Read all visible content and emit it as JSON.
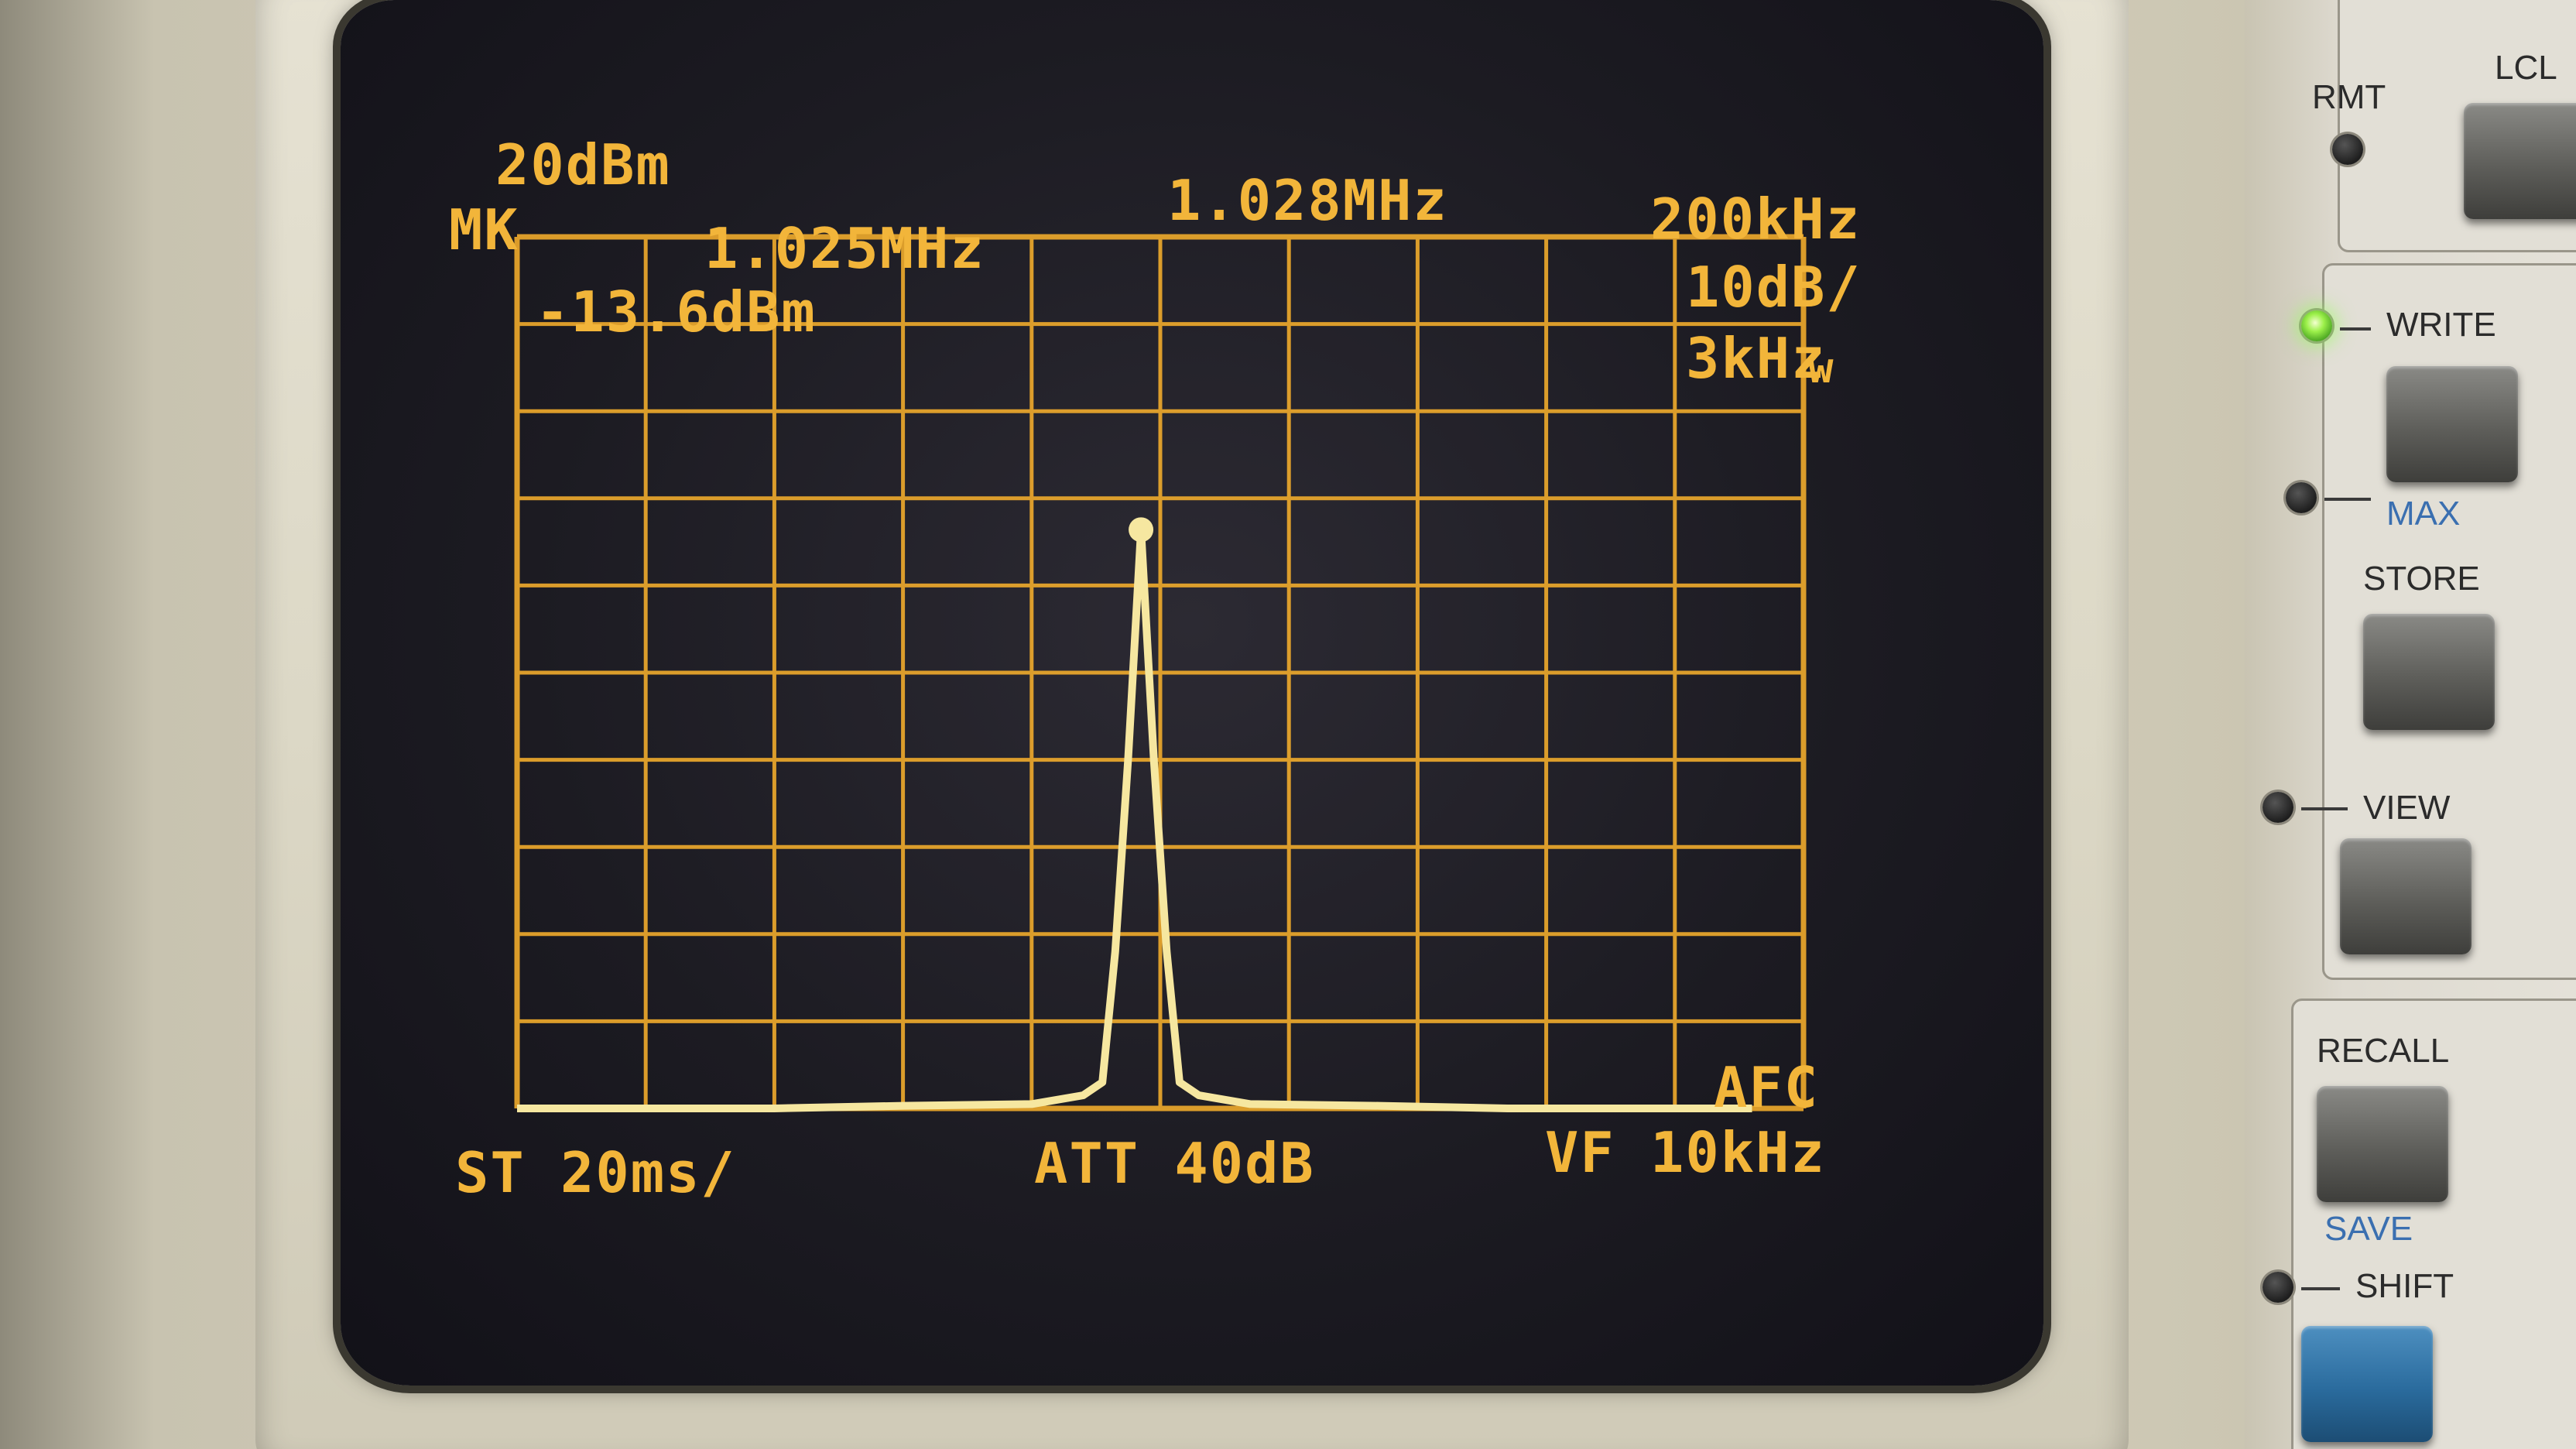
{
  "screen": {
    "ref_level": "20dBm",
    "center_freq": "1.028MHz",
    "span": "200kHz",
    "marker_label": "MK",
    "marker_freq": "1.025MHz",
    "marker_level": "-13.6dBm",
    "scale": "10dB/",
    "rbw": "3kHz",
    "rbw_suffix": "w",
    "afc": "AFC",
    "sweep_time": "ST 20ms/",
    "attenuation": "ATT 40dB",
    "video_filter": "VF 10kHz",
    "trace_color": "#f6e7a0",
    "text_color": "#f2b53a",
    "grid_color": "#f0ab2c"
  },
  "chart_data": {
    "type": "line",
    "title": "",
    "xlabel": "",
    "ylabel": "",
    "x_units": "MHz",
    "y_units": "dBm",
    "xlim": [
      0.928,
      1.128
    ],
    "ylim": [
      -80,
      20
    ],
    "grid": "on",
    "x": [
      0.928,
      0.948,
      0.968,
      0.988,
      1.008,
      1.016,
      1.019,
      1.021,
      1.023,
      1.025,
      1.027,
      1.029,
      1.031,
      1.034,
      1.042,
      1.062,
      1.082,
      1.102,
      1.12
    ],
    "values": [
      -80,
      -80,
      -80,
      -79.7,
      -79.5,
      -78.5,
      -77,
      -62,
      -40,
      -13.6,
      -40,
      -62,
      -77,
      -78.5,
      -79.5,
      -79.7,
      -80,
      -80,
      -80
    ]
  },
  "panel": {
    "rmt_label": "RMT",
    "lcl_label": "LCL",
    "write_label": "WRITE",
    "max_label": "MAX",
    "store_label": "STORE",
    "view_label": "VIEW",
    "recall_label": "RECALL",
    "save_label": "SAVE",
    "shift_label": "SHIFT",
    "write_led": "on",
    "accent_blue": "#3a6fb0"
  }
}
